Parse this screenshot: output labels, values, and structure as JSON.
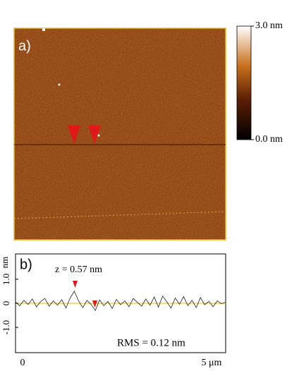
{
  "chart_data": [
    {
      "type": "image",
      "label": "a)",
      "clim": [
        0,
        3
      ],
      "cticks": [
        {
          "value": 0,
          "label": "0.0 nm"
        },
        {
          "value": 3,
          "label": "3.0 nm"
        }
      ]
    },
    {
      "type": "line",
      "label": "b)",
      "ylabel": "nm",
      "x": [
        0,
        0.1,
        0.2,
        0.3,
        0.4,
        0.5,
        0.6,
        0.7,
        0.8,
        0.9,
        1,
        1.1,
        1.2,
        1.3,
        1.4,
        1.5,
        1.6,
        1.7,
        1.8,
        1.9,
        2,
        2.1,
        2.2,
        2.3,
        2.4,
        2.5,
        2.6,
        2.7,
        2.8,
        2.9,
        3,
        3.1,
        3.2,
        3.3,
        3.4,
        3.5,
        3.6,
        3.7,
        3.8,
        3.9,
        4,
        4.1,
        4.2,
        4.3,
        4.4,
        4.5,
        4.6,
        4.7,
        4.8,
        4.9,
        5
      ],
      "series": [
        {
          "color": "#222222",
          "values": [
            0.05,
            -0.1,
            0.12,
            -0.05,
            0.18,
            -0.15,
            0.08,
            0.2,
            -0.12,
            0.1,
            -0.08,
            0.15,
            -0.2,
            0.22,
            0.5,
            0.1,
            -0.18,
            0.12,
            -0.05,
            -0.3,
            0.14,
            -0.1,
            0.08,
            -0.22,
            0.16,
            -0.06,
            0.1,
            -0.14,
            0.2,
            0.04,
            -0.12,
            0.18,
            -0.08,
            0.26,
            -0.16,
            0.3,
            0.06,
            -0.2,
            0.22,
            -0.04,
            0.28,
            -0.1,
            0.12,
            -0.18,
            0.24,
            -0.06,
            0.08,
            -0.14,
            0.1,
            -0.02,
            0.04
          ]
        }
      ],
      "xlim": [
        0,
        5
      ],
      "ylim": [
        -2.05,
        2.05
      ],
      "xticks": [
        0,
        {
          "value": 5,
          "label": "5 μm"
        }
      ],
      "yticks": [
        {
          "value": -1,
          "label": "-1.0"
        },
        0,
        {
          "value": 1,
          "label": "1.0"
        }
      ],
      "annotations": [
        "z = 0.57 nm",
        "RMS = 0.12 nm"
      ]
    }
  ]
}
